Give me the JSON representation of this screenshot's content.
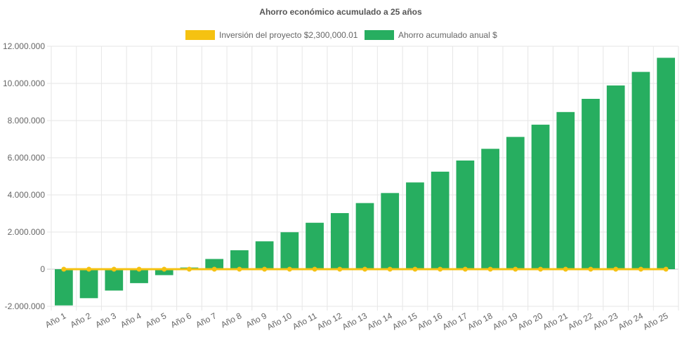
{
  "chart_data": {
    "type": "bar",
    "title": "Ahorro económico acumulado a 25 años",
    "categories": [
      "Año 1",
      "Año 2",
      "Año 3",
      "Año 4",
      "Año 5",
      "Año 6",
      "Año 7",
      "Año 8",
      "Año 9",
      "Año 10",
      "Año 11",
      "Año 12",
      "Año 13",
      "Año 14",
      "Año 15",
      "Año 16",
      "Año 17",
      "Año 18",
      "Año 19",
      "Año 20",
      "Año 21",
      "Año 22",
      "Año 23",
      "Año 24",
      "Año 25"
    ],
    "y_ticks": [
      "-2.000.000",
      "0",
      "2.000.000",
      "4.000.000",
      "6.000.000",
      "8.000.000",
      "10.000.000",
      "12.000.000"
    ],
    "ylim": [
      -2000000,
      12000000
    ],
    "y_tick_step": 2000000,
    "grid": true,
    "legend_position": "top",
    "series": [
      {
        "name": "Inversión del proyecto $2,300,000.01",
        "type": "line",
        "color": "#f5c211",
        "values": [
          0,
          0,
          0,
          0,
          0,
          0,
          0,
          0,
          0,
          0,
          0,
          0,
          0,
          0,
          0,
          0,
          0,
          0,
          0,
          0,
          0,
          0,
          0,
          0,
          0
        ]
      },
      {
        "name": "Ahorro acumulado anual $",
        "type": "bar",
        "color": "#27ae60",
        "values": [
          -1950000,
          -1560000,
          -1150000,
          -750000,
          -320000,
          90000,
          550000,
          1020000,
          1500000,
          1990000,
          2500000,
          3020000,
          3560000,
          4100000,
          4670000,
          5250000,
          5850000,
          6480000,
          7120000,
          7780000,
          8460000,
          9170000,
          9890000,
          10620000,
          11380000
        ]
      }
    ]
  }
}
